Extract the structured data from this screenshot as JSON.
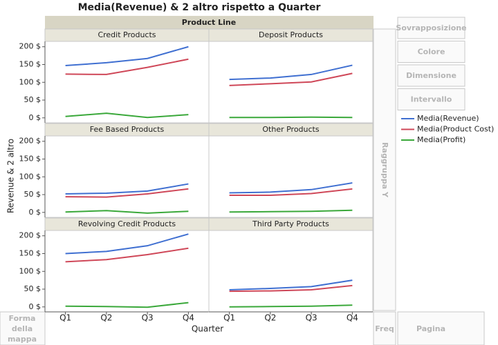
{
  "chart_data": {
    "type": "line",
    "title": "Media(Revenue) & 2 altro rispetto a Quarter",
    "facet_title": "Product Line",
    "x_label": "Quarter",
    "y_label": "Revenue & 2 altro",
    "categories": [
      "Q1",
      "Q2",
      "Q3",
      "Q4"
    ],
    "ylim": [
      -14,
      215
    ],
    "yticks": [
      {
        "value": 0,
        "label": "0 $"
      },
      {
        "value": 50,
        "label": "50 $"
      },
      {
        "value": 100,
        "label": "100 $"
      },
      {
        "value": 150,
        "label": "150 $"
      },
      {
        "value": 200,
        "label": "200 $"
      }
    ],
    "series": [
      {
        "name": "Media(Revenue)",
        "color": "#3f6fd1"
      },
      {
        "name": "Media(Product Cost)",
        "color": "#cf4758"
      },
      {
        "name": "Media(Profit)",
        "color": "#3aa83a"
      }
    ],
    "panels": [
      {
        "title": "Credit Products",
        "values": [
          [
            147,
            155,
            167,
            200
          ],
          [
            123,
            122,
            142,
            165
          ],
          [
            4,
            13,
            1,
            9
          ]
        ]
      },
      {
        "title": "Deposit Products",
        "values": [
          [
            108,
            112,
            122,
            148
          ],
          [
            91,
            96,
            101,
            125
          ],
          [
            1,
            1,
            2,
            1
          ]
        ]
      },
      {
        "title": "Fee Based Products",
        "values": [
          [
            52,
            54,
            60,
            80
          ],
          [
            44,
            43,
            52,
            66
          ],
          [
            1,
            5,
            -2,
            3
          ]
        ]
      },
      {
        "title": "Other Products",
        "values": [
          [
            55,
            57,
            64,
            83
          ],
          [
            48,
            48,
            53,
            66
          ],
          [
            1,
            2,
            3,
            6
          ]
        ]
      },
      {
        "title": "Revolving Credit Products",
        "values": [
          [
            150,
            156,
            172,
            205
          ],
          [
            127,
            133,
            147,
            165
          ],
          [
            2,
            1,
            -1,
            12
          ]
        ]
      },
      {
        "title": "Third Party Products",
        "values": [
          [
            48,
            52,
            57,
            75
          ],
          [
            44,
            45,
            48,
            60
          ],
          [
            0,
            1,
            2,
            5
          ]
        ]
      }
    ]
  },
  "controls": {
    "buttons": [
      "Sovrapposizione",
      "Colore",
      "Dimensione",
      "Intervallo"
    ],
    "group_y": "Raggruppa Y",
    "map_shape": [
      "Forma",
      "della",
      "mappa"
    ],
    "freq": "Freq",
    "page": "Pagina"
  }
}
